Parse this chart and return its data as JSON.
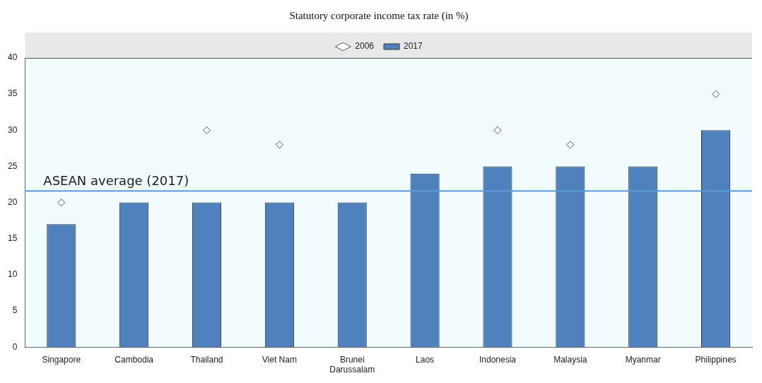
{
  "chart_data": {
    "type": "bar",
    "title": "Statutory corporate income tax rate (in %)",
    "categories": [
      "Singapore",
      "Cambodia",
      "Thailand",
      "Viet Nam",
      "Brunei Darussalam",
      "Laos",
      "Indonesia",
      "Malaysia",
      "Myanmar",
      "Philippines"
    ],
    "series": [
      {
        "name": "2017",
        "color": "#4f81bd",
        "values": [
          17,
          20,
          20,
          20,
          20,
          24,
          25,
          25,
          25,
          30
        ]
      },
      {
        "name": "2006",
        "type": "scatter",
        "color": "#ffffff",
        "marker": "diamond",
        "values": [
          20,
          null,
          30,
          28,
          null,
          null,
          30,
          28,
          null,
          35
        ]
      }
    ],
    "ylim": [
      0,
      40
    ],
    "yticks": [
      0,
      5,
      10,
      15,
      20,
      25,
      30,
      35,
      40
    ],
    "ref_lines": [
      {
        "axis": "y",
        "value": 21.6,
        "label": "ASEAN average (2017)",
        "color": "#5b9bd5"
      }
    ],
    "legend": "top",
    "grid": false
  }
}
